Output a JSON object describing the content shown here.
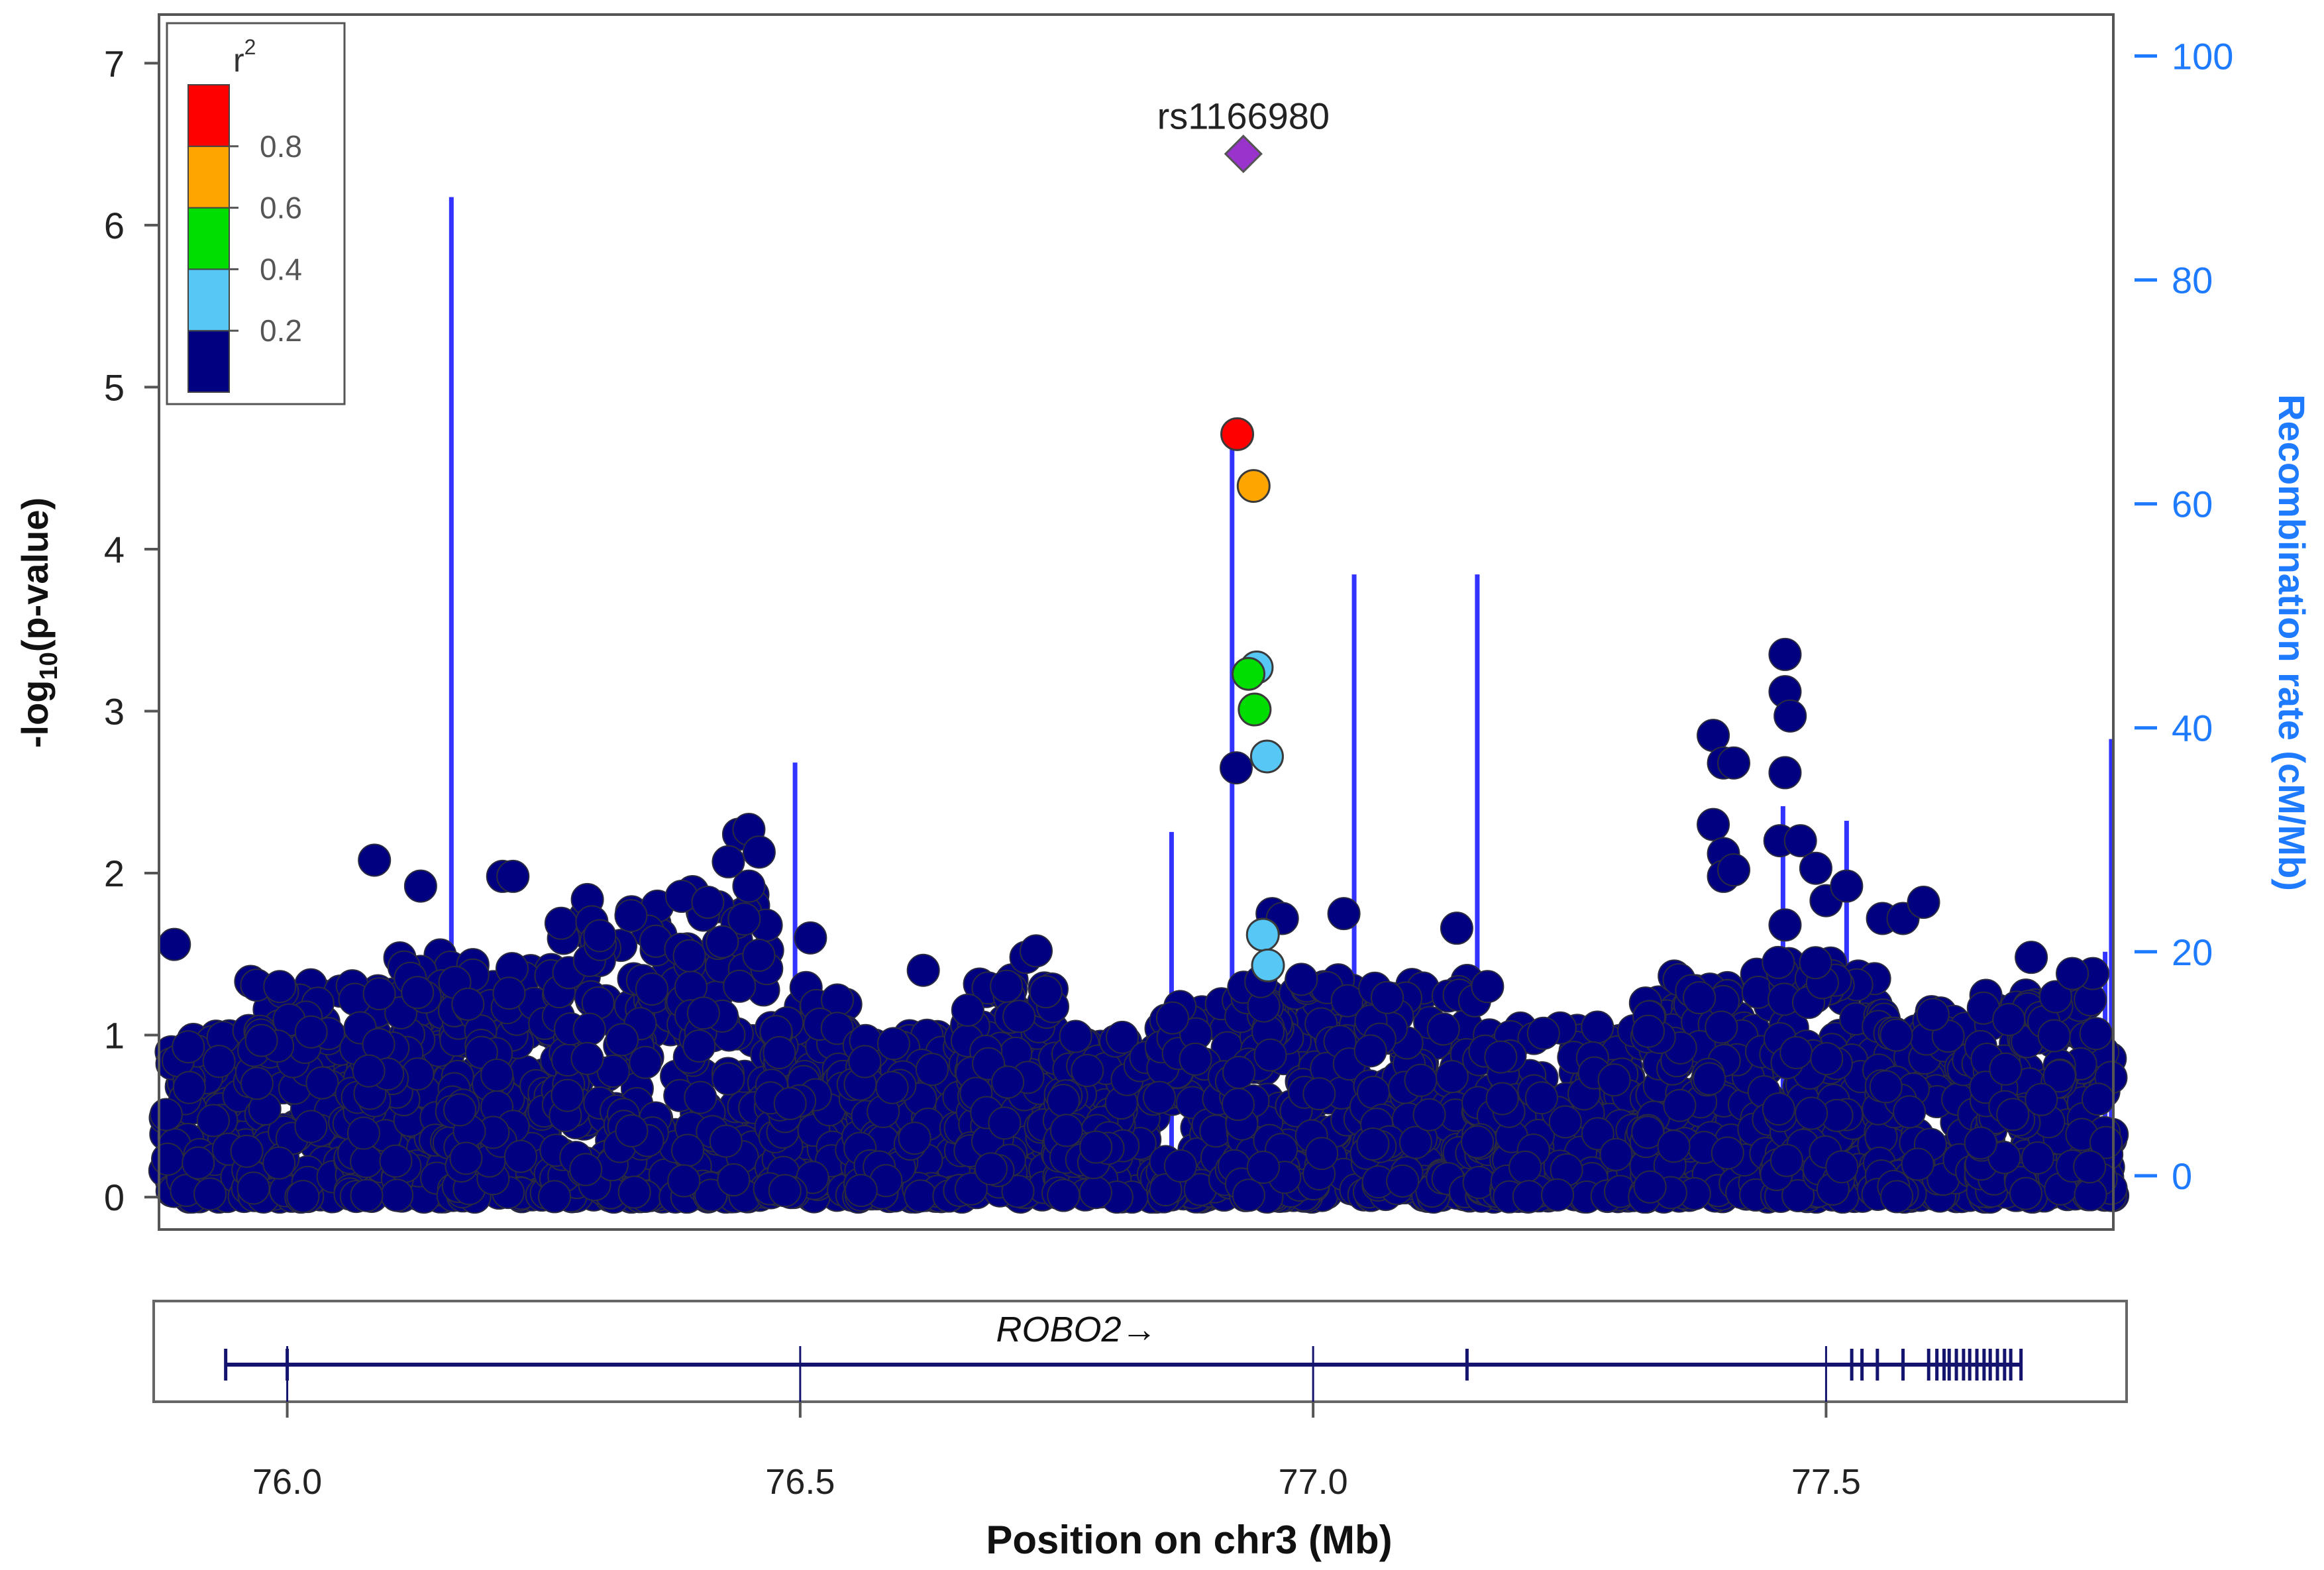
{
  "chart_data": {
    "type": "scatter",
    "title": "",
    "xlabel": "Position on chr3 (Mb)",
    "ylabel_main": "-log",
    "ylabel_sub": "10",
    "ylabel_tail": "(p-value)",
    "y2label": "Recombination rate (cM/Mb)",
    "xlim": [
      75.875,
      77.78
    ],
    "ylim": [
      -0.2,
      7.3
    ],
    "y2lim": [
      -4.8,
      103.7
    ],
    "x_ticks": [
      76.0,
      76.5,
      77.0,
      77.5
    ],
    "x_tick_labels": [
      "76.0",
      "76.5",
      "77.0",
      "77.5"
    ],
    "y_ticks": [
      0,
      1,
      2,
      3,
      4,
      5,
      6,
      7
    ],
    "y_tick_labels": [
      "0",
      "1",
      "2",
      "3",
      "4",
      "5",
      "6",
      "7"
    ],
    "y2_ticks": [
      0,
      20,
      40,
      60,
      80,
      100
    ],
    "y2_tick_labels": [
      "0",
      "20",
      "40",
      "60",
      "80",
      "100"
    ],
    "lead_snp": {
      "label": "rs1166980",
      "x": 76.932,
      "y": 6.44,
      "color": "#9933cc"
    },
    "ld_legend": {
      "title_main": "r",
      "title_sup": "2",
      "placement": "top-left",
      "bins": [
        {
          "color": "#000080"
        },
        {
          "color": "#57c7f5"
        },
        {
          "color": "#00dd00"
        },
        {
          "color": "#ffa500"
        },
        {
          "color": "#ff0000"
        }
      ],
      "tick_labels": [
        "0.2",
        "0.4",
        "0.6",
        "0.8"
      ]
    },
    "colors": {
      "recombination": "#3333ff",
      "secondary_axis": "#1e7bff",
      "low_ld": "#000080",
      "point_edge": "#2a2a40"
    },
    "recombination_peaks": [
      {
        "x": 75.88,
        "rate": 5
      },
      {
        "x": 76.16,
        "rate": 87.4
      },
      {
        "x": 76.495,
        "rate": 36.9
      },
      {
        "x": 76.862,
        "rate": 30.7
      },
      {
        "x": 76.921,
        "rate": 67
      },
      {
        "x": 77.04,
        "rate": 53.7
      },
      {
        "x": 77.16,
        "rate": 53.7
      },
      {
        "x": 77.458,
        "rate": 33
      },
      {
        "x": 77.52,
        "rate": 31.7
      },
      {
        "x": 77.772,
        "rate": 20
      },
      {
        "x": 77.778,
        "rate": 39
      }
    ],
    "colored_points": [
      {
        "x": 76.926,
        "y": 4.71,
        "color": "#ff0000"
      },
      {
        "x": 76.942,
        "y": 4.39,
        "color": "#ffa500"
      },
      {
        "x": 76.945,
        "y": 3.27,
        "color": "#57c7f5"
      },
      {
        "x": 76.937,
        "y": 3.23,
        "color": "#00dd00"
      },
      {
        "x": 76.943,
        "y": 3.01,
        "color": "#00dd00"
      },
      {
        "x": 76.955,
        "y": 2.72,
        "color": "#57c7f5"
      },
      {
        "x": 76.951,
        "y": 1.62,
        "color": "#57c7f5"
      },
      {
        "x": 76.956,
        "y": 1.43,
        "color": "#57c7f5"
      }
    ],
    "low_ld_highlights": [
      {
        "x": 75.89,
        "y": 1.56
      },
      {
        "x": 76.085,
        "y": 2.08
      },
      {
        "x": 76.13,
        "y": 1.92
      },
      {
        "x": 76.21,
        "y": 1.98
      },
      {
        "x": 76.22,
        "y": 1.98
      },
      {
        "x": 76.44,
        "y": 2.24
      },
      {
        "x": 76.45,
        "y": 2.27
      },
      {
        "x": 76.43,
        "y": 2.07
      },
      {
        "x": 76.46,
        "y": 2.13
      },
      {
        "x": 76.45,
        "y": 1.92
      },
      {
        "x": 76.41,
        "y": 1.82
      },
      {
        "x": 76.925,
        "y": 2.65
      },
      {
        "x": 76.96,
        "y": 1.75
      },
      {
        "x": 76.97,
        "y": 1.72
      },
      {
        "x": 77.03,
        "y": 1.75
      },
      {
        "x": 77.14,
        "y": 1.66
      },
      {
        "x": 77.39,
        "y": 2.85
      },
      {
        "x": 77.4,
        "y": 2.68
      },
      {
        "x": 77.41,
        "y": 2.68
      },
      {
        "x": 77.39,
        "y": 2.3
      },
      {
        "x": 77.4,
        "y": 2.12
      },
      {
        "x": 77.4,
        "y": 1.98
      },
      {
        "x": 77.41,
        "y": 2.02
      },
      {
        "x": 77.46,
        "y": 3.35
      },
      {
        "x": 77.46,
        "y": 3.12
      },
      {
        "x": 77.465,
        "y": 2.97
      },
      {
        "x": 77.46,
        "y": 2.62
      },
      {
        "x": 77.455,
        "y": 2.2
      },
      {
        "x": 77.475,
        "y": 2.2
      },
      {
        "x": 77.46,
        "y": 1.68
      },
      {
        "x": 77.49,
        "y": 2.03
      },
      {
        "x": 77.5,
        "y": 1.83
      },
      {
        "x": 77.52,
        "y": 1.92
      },
      {
        "x": 77.555,
        "y": 1.72
      },
      {
        "x": 77.575,
        "y": 1.72
      },
      {
        "x": 77.595,
        "y": 1.82
      },
      {
        "x": 76.72,
        "y": 1.48
      },
      {
        "x": 76.73,
        "y": 1.52
      },
      {
        "x": 76.62,
        "y": 1.4
      },
      {
        "x": 76.51,
        "y": 1.6
      },
      {
        "x": 77.17,
        "y": 1.3
      },
      {
        "x": 77.76,
        "y": 1.38
      },
      {
        "x": 77.74,
        "y": 1.38
      },
      {
        "x": 77.7,
        "y": 1.48
      }
    ],
    "low_ld_density": [
      [
        75.88,
        75.96,
        1.0
      ],
      [
        75.96,
        76.06,
        1.35
      ],
      [
        76.06,
        76.16,
        1.5
      ],
      [
        76.16,
        76.26,
        1.5
      ],
      [
        76.26,
        76.38,
        1.85
      ],
      [
        76.38,
        76.47,
        1.9
      ],
      [
        76.47,
        76.55,
        1.3
      ],
      [
        76.55,
        76.66,
        1.0
      ],
      [
        76.66,
        76.75,
        1.35
      ],
      [
        76.75,
        76.85,
        1.0
      ],
      [
        76.85,
        76.92,
        1.2
      ],
      [
        76.92,
        77.05,
        1.35
      ],
      [
        77.05,
        77.16,
        1.35
      ],
      [
        77.16,
        77.32,
        1.05
      ],
      [
        77.32,
        77.45,
        1.4
      ],
      [
        77.45,
        77.55,
        1.45
      ],
      [
        77.55,
        77.65,
        1.15
      ],
      [
        77.65,
        77.78,
        1.25
      ]
    ],
    "gene": {
      "name": "ROBO2",
      "arrow": "→",
      "start": 75.94,
      "end": 77.69,
      "exons": [
        75.94,
        76.0,
        77.15,
        77.525,
        77.535,
        77.55,
        77.575,
        77.6,
        77.608,
        77.615,
        77.62,
        77.627,
        77.634,
        77.64,
        77.647,
        77.654,
        77.66,
        77.667,
        77.674,
        77.68,
        77.69
      ],
      "color": "#14146e"
    }
  }
}
